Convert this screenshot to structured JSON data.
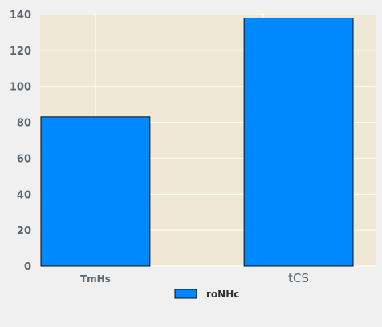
{
  "colors": {
    "background": "#f0f0f0",
    "plot_area": "#efe8d6",
    "grid": "#ffffff",
    "bar_fill": "#0088ff",
    "bar_stroke": "#0d0d0d",
    "tick_text": "#5a6670",
    "legend_text": "#333333"
  },
  "chart_data": {
    "type": "bar",
    "categories": [
      "TmHs",
      "tCS"
    ],
    "series": [
      {
        "name": "roNHc",
        "values": [
          83,
          138
        ]
      }
    ],
    "xlabel": "",
    "ylabel": "",
    "ylim": [
      0,
      140
    ],
    "yticks": [
      "0",
      "20",
      "40",
      "60",
      "80",
      "100",
      "120",
      "140"
    ],
    "grid": true,
    "legend": "bottom-center"
  }
}
